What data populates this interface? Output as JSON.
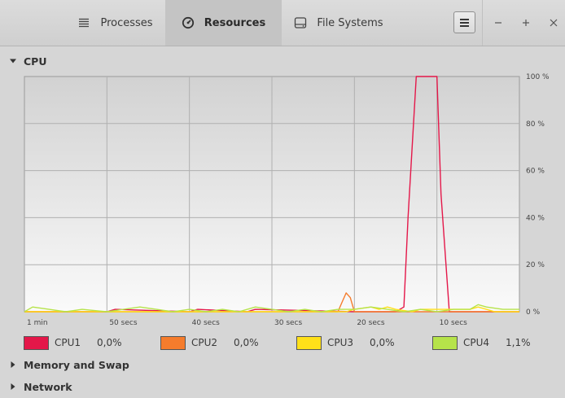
{
  "tabs": [
    {
      "label": "Processes",
      "icon": "list-icon",
      "active": false
    },
    {
      "label": "Resources",
      "icon": "gauge-icon",
      "active": true
    },
    {
      "label": "File Systems",
      "icon": "disk-icon",
      "active": false
    }
  ],
  "window_controls": {
    "minimize": "−",
    "maximize": "+",
    "close": "×"
  },
  "sections": {
    "cpu": "CPU",
    "memory": "Memory and Swap",
    "network": "Network"
  },
  "legend": [
    {
      "name": "CPU1",
      "value": "0,0%",
      "color": "#e41749"
    },
    {
      "name": "CPU2",
      "value": "0,0%",
      "color": "#f57c2c"
    },
    {
      "name": "CPU3",
      "value": "0,0%",
      "color": "#ffe019"
    },
    {
      "name": "CPU4",
      "value": "1,1%",
      "color": "#b6e34a"
    }
  ],
  "chart_data": {
    "type": "line",
    "x_ticks": [
      "1 min",
      "50 secs",
      "40 secs",
      "30 secs",
      "20 secs",
      "10 secs"
    ],
    "y_ticks": [
      "100 %",
      "80 %",
      "60 %",
      "40 %",
      "20 %",
      "0 %"
    ],
    "ylim": [
      0,
      100
    ],
    "xlim": [
      60,
      0
    ],
    "grid": true,
    "series": [
      {
        "name": "CPU1",
        "color": "#e41749",
        "x": [
          60,
          50,
          49,
          40,
          39,
          33,
          32,
          20,
          15,
          14,
          13.5,
          12.5,
          11.5,
          10,
          9.5,
          8.5,
          7.5,
          7,
          6,
          5,
          0
        ],
        "y": [
          0,
          0,
          1,
          0,
          1,
          0,
          1,
          0,
          0,
          2,
          40,
          100,
          100,
          100,
          50,
          0,
          0,
          0,
          0,
          0,
          0
        ]
      },
      {
        "name": "CPU2",
        "color": "#f57c2c",
        "x": [
          60,
          22,
          21.5,
          21,
          20.5,
          20,
          19.5,
          0
        ],
        "y": [
          0,
          0,
          4,
          8,
          6,
          0,
          0,
          0
        ]
      },
      {
        "name": "CPU3",
        "color": "#ffe019",
        "x": [
          60,
          21,
          20,
          18,
          17,
          16,
          15,
          13,
          12,
          6,
          5,
          4,
          3,
          0
        ],
        "y": [
          0,
          0,
          1,
          2,
          1,
          2,
          1,
          0,
          1,
          1,
          2,
          1,
          0,
          0
        ]
      },
      {
        "name": "CPU4",
        "color": "#b6e34a",
        "x": [
          60,
          59,
          57,
          55,
          53,
          50,
          48,
          46,
          44,
          42,
          40,
          38,
          36,
          34,
          32,
          30,
          28,
          26,
          24,
          22,
          20,
          18,
          16,
          14,
          12,
          10,
          8,
          6,
          5,
          4,
          2,
          0
        ],
        "y": [
          0,
          2,
          1,
          0,
          1,
          0,
          1,
          2,
          1,
          0,
          1,
          0,
          1,
          0,
          2,
          1,
          0,
          1,
          0,
          1,
          1,
          2,
          1,
          0,
          1,
          0,
          1,
          1,
          3,
          2,
          1,
          1
        ]
      }
    ]
  }
}
